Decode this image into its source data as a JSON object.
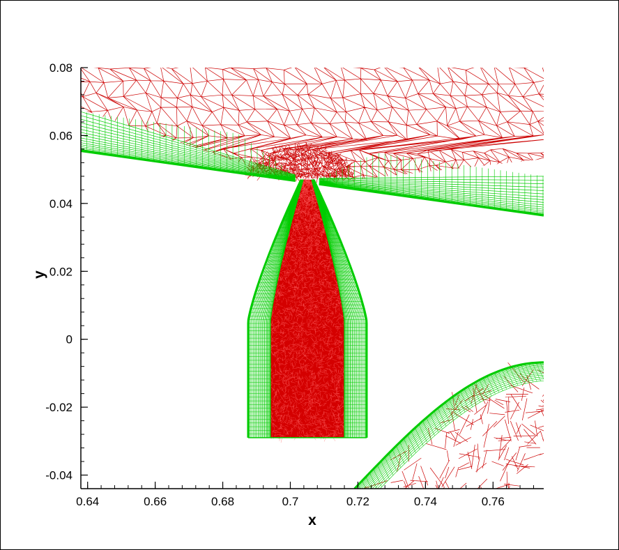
{
  "chart_data": {
    "type": "mesh",
    "xlabel": "x",
    "ylabel": "y",
    "xlim": [
      0.638,
      0.775
    ],
    "ylim": [
      -0.044,
      0.08
    ],
    "xticks": [
      0.64,
      0.66,
      0.68,
      0.7,
      0.72,
      0.74,
      0.76
    ],
    "xtick_labels": [
      "0.64",
      "0.66",
      "0.68",
      "0.7",
      "0.72",
      "0.74",
      "0.76"
    ],
    "yticks": [
      -0.04,
      -0.02,
      0,
      0.02,
      0.04,
      0.06,
      0.08
    ],
    "ytick_labels": [
      "-0.04",
      "-0.02",
      "0",
      "0.02",
      "0.04",
      "0.06",
      "0.08"
    ],
    "grid": false,
    "colors": {
      "structured_mesh": "#00cc00",
      "unstructured_mesh": "#cc0000",
      "axes": "#000000"
    },
    "regions": [
      {
        "name_key": "upper-wall",
        "mesh": "structured",
        "wall_line": [
          [
            0.638,
            0.0555
          ],
          [
            0.775,
            0.0365
          ]
        ]
      },
      {
        "name_key": "orifice-body",
        "mesh": "structured",
        "x_span": [
          0.67,
          0.73
        ],
        "y_span": [
          -0.029,
          0.047
        ]
      },
      {
        "name_key": "orifice-core",
        "mesh": "unstructured",
        "x_span": [
          0.683,
          0.72
        ],
        "y_span": [
          -0.029,
          0.048
        ]
      },
      {
        "name_key": "far-field",
        "mesh": "unstructured",
        "y_span": [
          0.048,
          0.08
        ]
      },
      {
        "name_key": "lower-body",
        "mesh": "structured",
        "x_span": [
          0.72,
          0.775
        ],
        "y_span": [
          -0.044,
          -0.007
        ]
      }
    ]
  }
}
